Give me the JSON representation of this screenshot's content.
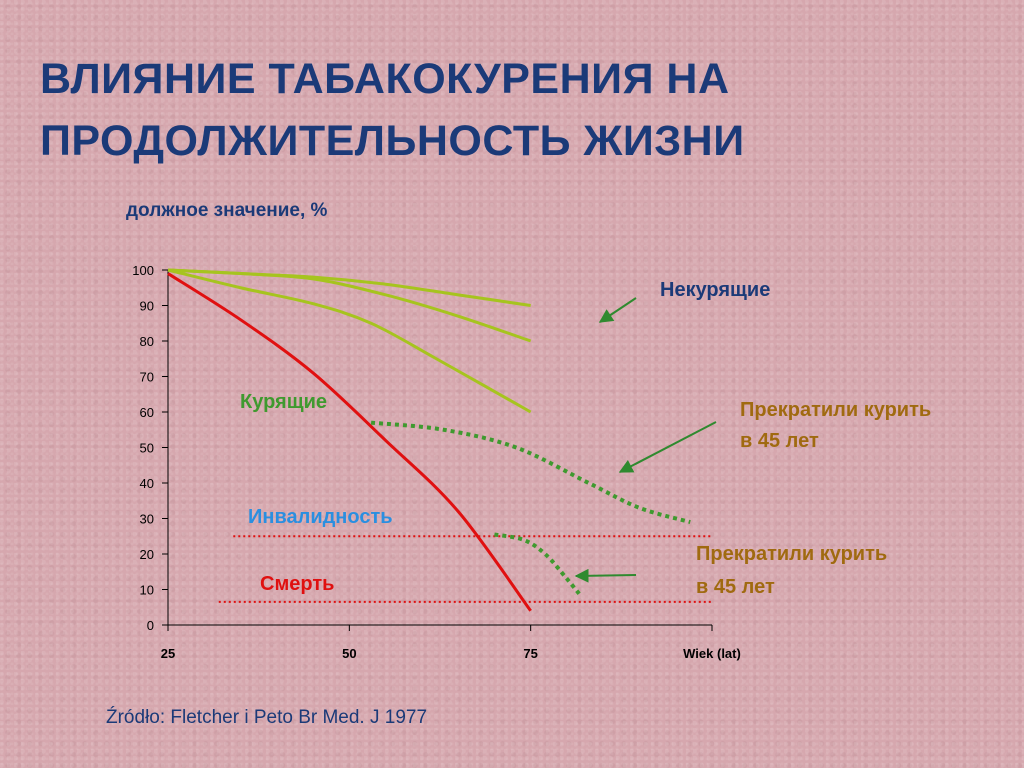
{
  "title": {
    "line1": "ВЛИЯНИЕ ТАБАКОКУРЕНИЯ НА",
    "line2": "ПРОДОЛЖИТЕЛЬНОСТЬ ЖИЗНИ"
  },
  "source": "Źródło: Fletcher i Peto Br Med. J 1977",
  "colors": {
    "title": "#1b3a78",
    "nonsmokers": "#a6c41e",
    "smokers": "#e01010",
    "quit": "#3f9a2f",
    "disability_text": "#2a8fe0",
    "death_text": "#e01010",
    "arrow_label": "#a06a10",
    "arrow": "#2f8a2f"
  },
  "chart_data": {
    "type": "line",
    "ylabel": "должное значение, %",
    "xlabel": "Wiek (lat)",
    "ylim": [
      0,
      100
    ],
    "y_ticks": [
      0,
      10,
      20,
      30,
      40,
      50,
      60,
      70,
      80,
      90,
      100
    ],
    "x_ticks": [
      {
        "value": 25,
        "label": "25"
      },
      {
        "value": 50,
        "label": "50"
      },
      {
        "value": 75,
        "label": "75"
      },
      {
        "value": 100,
        "label": "Wiek (lat)"
      }
    ],
    "xlim": [
      25,
      100
    ],
    "series": [
      {
        "group": "nonsmokers",
        "style": "solid",
        "color": "#a6c41e",
        "points": [
          [
            25,
            100
          ],
          [
            35,
            99
          ],
          [
            45,
            98
          ],
          [
            55,
            96
          ],
          [
            65,
            93
          ],
          [
            75,
            90
          ]
        ]
      },
      {
        "group": "nonsmokers",
        "style": "solid",
        "color": "#a6c41e",
        "points": [
          [
            25,
            100
          ],
          [
            35,
            99
          ],
          [
            45,
            97.5
          ],
          [
            55,
            93
          ],
          [
            65,
            87
          ],
          [
            75,
            80
          ]
        ]
      },
      {
        "group": "nonsmokers",
        "style": "solid",
        "color": "#a6c41e",
        "points": [
          [
            25,
            100
          ],
          [
            35,
            95
          ],
          [
            45,
            90.5
          ],
          [
            53,
            85
          ],
          [
            62,
            75
          ],
          [
            75,
            60
          ]
        ]
      },
      {
        "group": "smokers",
        "style": "solid",
        "color": "#e01010",
        "points": [
          [
            25,
            99
          ],
          [
            35,
            86
          ],
          [
            45,
            71
          ],
          [
            55,
            52
          ],
          [
            65,
            32
          ],
          [
            75,
            4
          ]
        ]
      },
      {
        "group": "quit",
        "style": "dotted",
        "color": "#3f9a2f",
        "points": [
          [
            53,
            57
          ],
          [
            63,
            55
          ],
          [
            73,
            50
          ],
          [
            83,
            40
          ],
          [
            90,
            33
          ],
          [
            97,
            29
          ]
        ]
      },
      {
        "group": "quit",
        "style": "dotted",
        "color": "#3f9a2f",
        "points": [
          [
            70,
            25.5
          ],
          [
            74,
            24
          ],
          [
            77,
            20
          ],
          [
            80,
            13
          ],
          [
            82,
            8
          ]
        ]
      }
    ],
    "reference_lines": [
      {
        "name": "disability",
        "y": 25,
        "x_start": 34,
        "x_end": 100,
        "color": "#e01010"
      },
      {
        "name": "death",
        "y": 6.5,
        "x_start": 32,
        "x_end": 100,
        "color": "#e01010"
      }
    ],
    "annotations": {
      "nonsmokers": "Некурящие",
      "smokers": "Курящие",
      "quit1_line1": "Прекратили курить",
      "quit1_line2": "в 45 лет",
      "quit2_line1": "Прекратили курить",
      "quit2_line2": "в 45 лет",
      "disability": "Инвалидность",
      "death": "Смерть"
    }
  }
}
